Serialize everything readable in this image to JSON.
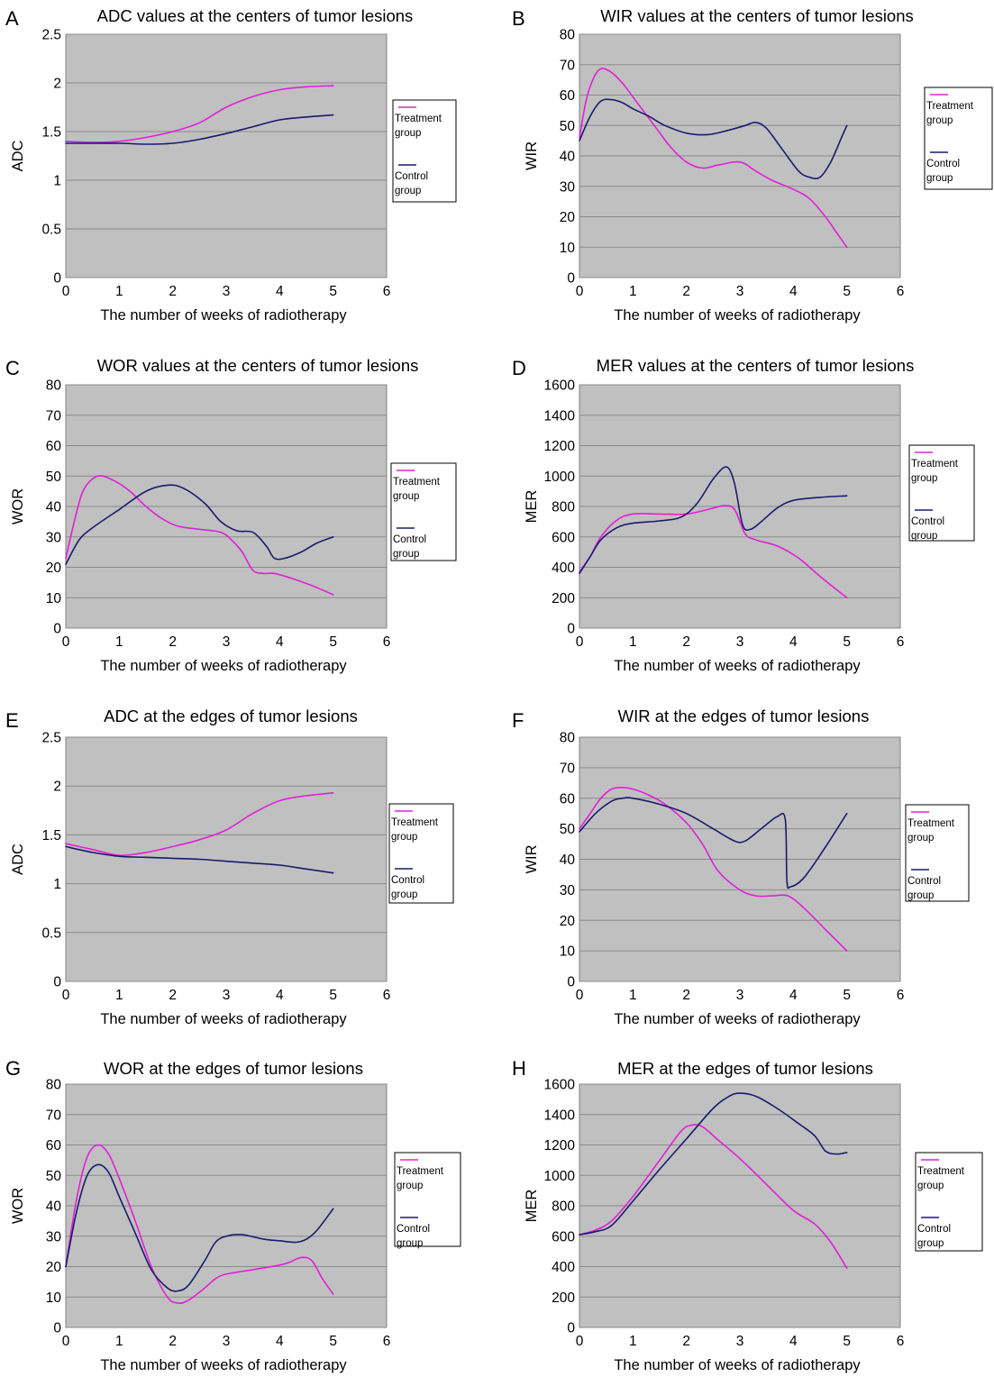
{
  "colors": {
    "treatment": "#e020d8",
    "control": "#1a1a6e",
    "plot_background": "#c0c0c0"
  },
  "chart_data": [
    {
      "panel_letter": "A",
      "type": "line",
      "title": "ADC values at the centers of tumor lesions",
      "xlabel": "The number of weeks of radiotherapy",
      "ylabel": "ADC",
      "xlim": [
        0,
        6
      ],
      "ylim": [
        0,
        2.5
      ],
      "x_ticks": [
        "0",
        "1",
        "2",
        "3",
        "4",
        "5",
        "6"
      ],
      "y_ticks": [
        "0",
        "0.5",
        "1",
        "1.5",
        "2",
        "2.5"
      ],
      "grid": true,
      "legend_position": "right",
      "series": [
        {
          "name": [
            "Treatment",
            "group"
          ],
          "color": "#e020d8",
          "x": [
            0,
            0.5,
            1,
            1.5,
            2,
            2.5,
            3,
            3.5,
            4,
            4.5,
            5
          ],
          "y": [
            1.4,
            1.39,
            1.4,
            1.44,
            1.5,
            1.59,
            1.75,
            1.86,
            1.93,
            1.96,
            1.97
          ]
        },
        {
          "name": [
            "Control",
            "group"
          ],
          "color": "#1a1a6e",
          "x": [
            0,
            0.5,
            1,
            1.5,
            2,
            2.5,
            3,
            3.5,
            4,
            4.5,
            5
          ],
          "y": [
            1.38,
            1.38,
            1.38,
            1.37,
            1.38,
            1.42,
            1.48,
            1.55,
            1.62,
            1.65,
            1.67
          ]
        }
      ]
    },
    {
      "panel_letter": "B",
      "type": "line",
      "title": "WIR values at the centers of tumor lesions",
      "xlabel": "The number of weeks of radiotherapy",
      "ylabel": "WIR",
      "xlim": [
        0,
        6
      ],
      "ylim": [
        0,
        80
      ],
      "x_ticks": [
        "0",
        "1",
        "2",
        "3",
        "4",
        "5",
        "6"
      ],
      "y_ticks": [
        "0",
        "10",
        "20",
        "30",
        "40",
        "50",
        "60",
        "70",
        "80"
      ],
      "grid": true,
      "legend_position": "right",
      "series": [
        {
          "name": [
            "Treatment",
            "group"
          ],
          "color": "#e020d8",
          "x": [
            0,
            0.15,
            0.35,
            0.55,
            0.8,
            1.1,
            1.4,
            1.7,
            2,
            2.3,
            2.6,
            3,
            3.3,
            3.6,
            4,
            4.3,
            4.6,
            4.8,
            5
          ],
          "y": [
            46,
            60,
            68,
            68,
            64,
            57,
            50,
            43,
            38,
            36,
            37,
            38,
            35,
            32,
            29,
            26,
            20,
            15,
            10
          ]
        },
        {
          "name": [
            "Control",
            "group"
          ],
          "color": "#1a1a6e",
          "x": [
            0,
            0.2,
            0.4,
            0.6,
            0.8,
            1,
            1.3,
            1.6,
            2,
            2.4,
            2.8,
            3.1,
            3.3,
            3.5,
            3.8,
            4.1,
            4.3,
            4.5,
            4.7,
            4.9,
            5
          ],
          "y": [
            45,
            53,
            58,
            58.5,
            57.5,
            55.5,
            53,
            50,
            47.5,
            47,
            48.5,
            50,
            51,
            49,
            42,
            35,
            33,
            33,
            38,
            46,
            50
          ]
        }
      ]
    },
    {
      "panel_letter": "C",
      "type": "line",
      "title": "WOR values at the centers of tumor lesions",
      "xlabel": "The number of weeks of radiotherapy",
      "ylabel": "WOR",
      "xlim": [
        0,
        6
      ],
      "ylim": [
        0,
        80
      ],
      "x_ticks": [
        "0",
        "1",
        "2",
        "3",
        "4",
        "5",
        "6"
      ],
      "y_ticks": [
        "0",
        "10",
        "20",
        "30",
        "40",
        "50",
        "60",
        "70",
        "80"
      ],
      "grid": true,
      "legend_position": "right",
      "series": [
        {
          "name": [
            "Treatment",
            "group"
          ],
          "color": "#e020d8",
          "x": [
            0,
            0.2,
            0.35,
            0.6,
            0.9,
            1.2,
            1.5,
            1.8,
            2.1,
            2.5,
            2.9,
            3.1,
            3.3,
            3.5,
            3.7,
            3.9,
            4.2,
            4.6,
            5
          ],
          "y": [
            23,
            38,
            46,
            50,
            48.5,
            45,
            40,
            36,
            33.5,
            32.5,
            31.5,
            29,
            25,
            19,
            18,
            18,
            16.5,
            14,
            11
          ]
        },
        {
          "name": [
            "Control",
            "group"
          ],
          "color": "#1a1a6e",
          "x": [
            0,
            0.25,
            0.5,
            1,
            1.5,
            1.9,
            2.2,
            2.6,
            2.9,
            3.2,
            3.5,
            3.75,
            3.9,
            4.1,
            4.4,
            4.7,
            5
          ],
          "y": [
            21,
            29,
            33,
            39,
            45,
            47,
            46,
            41,
            35,
            32,
            31.5,
            27,
            23,
            23,
            25,
            28,
            30
          ]
        }
      ]
    },
    {
      "panel_letter": "D",
      "type": "line",
      "title": "MER values at the centers of tumor lesions",
      "xlabel": "The number of weeks of radiotherapy",
      "ylabel": "MER",
      "xlim": [
        0,
        6
      ],
      "ylim": [
        0,
        1600
      ],
      "x_ticks": [
        "0",
        "1",
        "2",
        "3",
        "4",
        "5",
        "6"
      ],
      "y_ticks": [
        "0",
        "200",
        "400",
        "600",
        "800",
        "1000",
        "1200",
        "1400",
        "1600"
      ],
      "grid": true,
      "legend_position": "right",
      "series": [
        {
          "name": [
            "Treatment",
            "group"
          ],
          "color": "#e020d8",
          "x": [
            0,
            0.2,
            0.4,
            0.7,
            1,
            1.5,
            2,
            2.4,
            2.7,
            2.9,
            3.1,
            3.3,
            3.7,
            4.1,
            4.5,
            5
          ],
          "y": [
            370,
            470,
            600,
            710,
            750,
            750,
            750,
            780,
            805,
            780,
            620,
            580,
            540,
            460,
            340,
            200
          ]
        },
        {
          "name": [
            "Control",
            "group"
          ],
          "color": "#1a1a6e",
          "x": [
            0,
            0.2,
            0.4,
            0.7,
            1,
            1.5,
            1.9,
            2.2,
            2.5,
            2.75,
            2.9,
            3.05,
            3.2,
            3.4,
            3.7,
            4,
            4.5,
            5
          ],
          "y": [
            360,
            470,
            580,
            660,
            690,
            705,
            730,
            820,
            980,
            1060,
            950,
            680,
            650,
            700,
            790,
            840,
            860,
            870
          ]
        }
      ]
    },
    {
      "panel_letter": "E",
      "type": "line",
      "title": "ADC at the edges of tumor lesions",
      "xlabel": "The number of weeks of radiotherapy",
      "ylabel": "ADC",
      "xlim": [
        0,
        6
      ],
      "ylim": [
        0,
        2.5
      ],
      "x_ticks": [
        "0",
        "1",
        "2",
        "3",
        "4",
        "5",
        "6"
      ],
      "y_ticks": [
        "0",
        "0.5",
        "1",
        "1.5",
        "2",
        "2.5"
      ],
      "grid": true,
      "legend_position": "right",
      "series": [
        {
          "name": [
            "Treatment",
            "group"
          ],
          "color": "#e020d8",
          "x": [
            0,
            0.5,
            1,
            1.5,
            2,
            2.5,
            3,
            3.5,
            4,
            4.5,
            5
          ],
          "y": [
            1.41,
            1.35,
            1.29,
            1.32,
            1.38,
            1.45,
            1.55,
            1.72,
            1.85,
            1.9,
            1.93
          ]
        },
        {
          "name": [
            "Control",
            "group"
          ],
          "color": "#1a1a6e",
          "x": [
            0,
            0.5,
            1,
            1.5,
            2,
            2.5,
            3,
            3.5,
            4,
            4.5,
            5
          ],
          "y": [
            1.38,
            1.32,
            1.28,
            1.27,
            1.26,
            1.25,
            1.23,
            1.21,
            1.19,
            1.15,
            1.11
          ]
        }
      ]
    },
    {
      "panel_letter": "F",
      "type": "line",
      "title": "WIR at the edges of tumor lesions",
      "xlabel": "The number of weeks of radiotherapy",
      "ylabel": "WIR",
      "xlim": [
        0,
        6
      ],
      "ylim": [
        0,
        80
      ],
      "x_ticks": [
        "0",
        "1",
        "2",
        "3",
        "4",
        "5",
        "6"
      ],
      "y_ticks": [
        "0",
        "10",
        "20",
        "30",
        "40",
        "50",
        "60",
        "70",
        "80"
      ],
      "grid": true,
      "legend_position": "right",
      "series": [
        {
          "name": [
            "Treatment",
            "group"
          ],
          "color": "#e020d8",
          "x": [
            0,
            0.2,
            0.4,
            0.6,
            0.8,
            1,
            1.3,
            1.6,
            2,
            2.3,
            2.6,
            3,
            3.3,
            3.6,
            3.9,
            4.2,
            4.6,
            5
          ],
          "y": [
            50,
            55,
            60,
            63,
            63.5,
            63,
            61,
            58,
            52,
            45,
            36,
            30,
            28,
            28,
            28,
            24,
            17,
            10
          ]
        },
        {
          "name": [
            "Control",
            "group"
          ],
          "color": "#1a1a6e",
          "x": [
            0,
            0.3,
            0.6,
            0.8,
            1,
            1.5,
            2,
            2.5,
            2.9,
            3.1,
            3.4,
            3.7,
            3.85,
            3.88,
            3.95,
            4.2,
            4.6,
            5
          ],
          "y": [
            49,
            55,
            59,
            60,
            60,
            58,
            55,
            50,
            46,
            46,
            50,
            54,
            53,
            33,
            31,
            34,
            44,
            55
          ]
        }
      ]
    },
    {
      "panel_letter": "G",
      "type": "line",
      "title": "WOR at the edges of tumor lesions",
      "xlabel": "The number of weeks of radiotherapy",
      "ylabel": "WOR",
      "xlim": [
        0,
        6
      ],
      "ylim": [
        0,
        80
      ],
      "x_ticks": [
        "0",
        "1",
        "2",
        "3",
        "4",
        "5",
        "6"
      ],
      "y_ticks": [
        "0",
        "10",
        "20",
        "30",
        "40",
        "50",
        "60",
        "70",
        "80"
      ],
      "grid": true,
      "legend_position": "right",
      "series": [
        {
          "name": [
            "Treatment",
            "group"
          ],
          "color": "#e020d8",
          "x": [
            0,
            0.2,
            0.4,
            0.6,
            0.8,
            1,
            1.3,
            1.6,
            1.9,
            2.1,
            2.3,
            2.6,
            2.8,
            3,
            3.5,
            4,
            4.2,
            4.4,
            4.6,
            4.8,
            5
          ],
          "y": [
            20,
            42,
            56,
            60,
            57,
            49,
            35,
            20,
            10,
            8,
            9,
            13,
            16,
            17.5,
            19,
            20.5,
            21.5,
            23,
            22,
            16,
            11
          ]
        },
        {
          "name": [
            "Control",
            "group"
          ],
          "color": "#1a1a6e",
          "x": [
            0,
            0.2,
            0.4,
            0.6,
            0.8,
            1,
            1.3,
            1.6,
            1.9,
            2.1,
            2.3,
            2.6,
            2.8,
            3,
            3.3,
            3.7,
            4,
            4.3,
            4.5,
            4.7,
            5
          ],
          "y": [
            20,
            38,
            50,
            53.5,
            51,
            43,
            31,
            19,
            13,
            12,
            14,
            22,
            28,
            30,
            30.5,
            29,
            28.5,
            28,
            29,
            32,
            39
          ]
        }
      ]
    },
    {
      "panel_letter": "H",
      "type": "line",
      "title": "MER at the edges of tumor lesions",
      "xlabel": "The number of weeks of radiotherapy",
      "ylabel": "MER",
      "xlim": [
        0,
        6
      ],
      "ylim": [
        0,
        1600
      ],
      "x_ticks": [
        "0",
        "1",
        "2",
        "3",
        "4",
        "5",
        "6"
      ],
      "y_ticks": [
        "0",
        "200",
        "400",
        "600",
        "800",
        "1000",
        "1200",
        "1400",
        "1600"
      ],
      "grid": true,
      "legend_position": "right",
      "series": [
        {
          "name": [
            "Treatment",
            "group"
          ],
          "color": "#e020d8",
          "x": [
            0,
            0.3,
            0.6,
            1,
            1.5,
            1.9,
            2.1,
            2.3,
            2.6,
            3,
            3.5,
            4,
            4.4,
            4.7,
            5
          ],
          "y": [
            610,
            640,
            700,
            860,
            1100,
            1290,
            1330,
            1320,
            1230,
            1110,
            940,
            770,
            680,
            560,
            390
          ]
        },
        {
          "name": [
            "Control",
            "group"
          ],
          "color": "#1a1a6e",
          "x": [
            0,
            0.3,
            0.6,
            1,
            1.5,
            2,
            2.5,
            2.8,
            3,
            3.3,
            3.7,
            4.1,
            4.4,
            4.6,
            4.8,
            5
          ],
          "y": [
            610,
            630,
            670,
            830,
            1040,
            1240,
            1440,
            1520,
            1540,
            1520,
            1440,
            1340,
            1260,
            1160,
            1140,
            1150
          ]
        }
      ]
    }
  ]
}
